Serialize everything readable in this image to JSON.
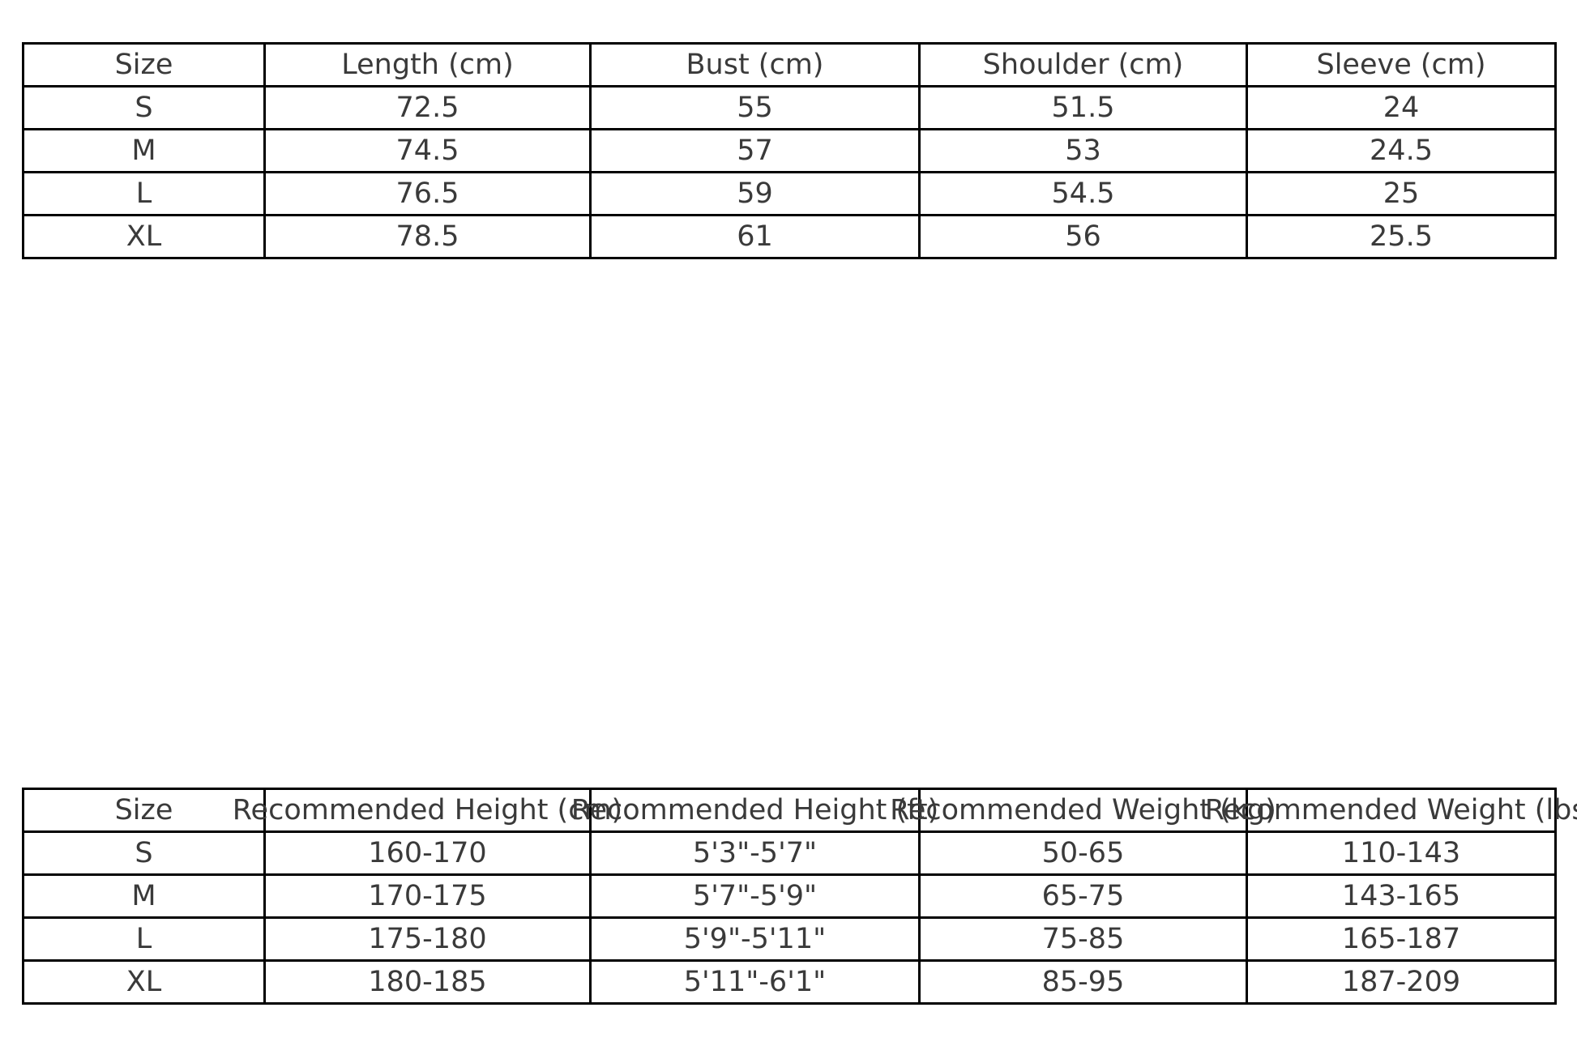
{
  "colors": {
    "background": "#ffffff",
    "border": "#000000",
    "text": "#3a3a3a"
  },
  "chart_data": [
    {
      "type": "table",
      "name": "garment size measurements",
      "columns": [
        "Size",
        "Length (cm)",
        "Bust (cm)",
        "Shoulder (cm)",
        "Sleeve (cm)"
      ],
      "rows": [
        [
          "S",
          "72.5",
          "55",
          "51.5",
          "24"
        ],
        [
          "M",
          "74.5",
          "57",
          "53",
          "24.5"
        ],
        [
          "L",
          "76.5",
          "59",
          "54.5",
          "25"
        ],
        [
          "XL",
          "78.5",
          "61",
          "56",
          "25.5"
        ]
      ]
    },
    {
      "type": "table",
      "name": "recommended fit guide",
      "columns": [
        "Size",
        "Recommended Height (cm)",
        "Recommended Height (ft)",
        "Recommended Weight (kg)",
        "Recommended Weight (lbs)"
      ],
      "rows": [
        [
          "S",
          "160-170",
          "5'3\"-5'7\"",
          "50-65",
          "110-143"
        ],
        [
          "M",
          "170-175",
          "5'7\"-5'9\"",
          "65-75",
          "143-165"
        ],
        [
          "L",
          "175-180",
          "5'9\"-5'11\"",
          "75-85",
          "165-187"
        ],
        [
          "XL",
          "180-185",
          "5'11\"-6'1\"",
          "85-95",
          "187-209"
        ]
      ]
    }
  ]
}
